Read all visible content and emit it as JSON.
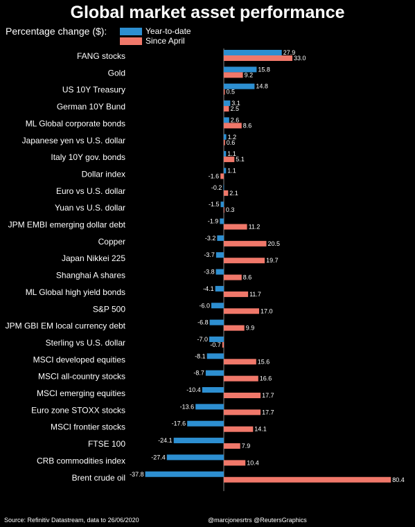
{
  "header": {
    "title": "Global market asset performance",
    "subtitle": "Percentage change ($):"
  },
  "legend": [
    {
      "label": "Year-to-date",
      "color": "#2d8fd1"
    },
    {
      "label": "Since April",
      "color": "#f0786a"
    }
  ],
  "footer": {
    "source": "Source: Refinitiv Datastream, data to 26/06/2020",
    "credit": "@marcjonesrtrs @ReutersGraphics"
  },
  "chart_data": {
    "type": "bar",
    "orientation": "horizontal",
    "title": "Global market asset performance",
    "categories": [
      "FANG stocks",
      "Gold",
      "US 10Y Treasury",
      "German 10Y Bund",
      "ML Global corporate bonds",
      "Japanese yen vs U.S. dollar",
      "Italy 10Y gov. bonds",
      "Dollar index",
      "Euro vs U.S. dollar",
      "Yuan vs U.S. dollar",
      "JPM EMBI emerging dollar debt",
      "Copper",
      "Japan Nikkei 225",
      "Shanghai A shares",
      "ML Global high yield bonds",
      "S&P 500",
      "JPM GBI EM local currency debt",
      "Sterling vs U.S. dollar",
      "MSCI developed equities",
      "MSCI all-country stocks",
      "MSCI emerging equities",
      "Euro zone STOXX stocks",
      "MSCI frontier stocks",
      "FTSE 100",
      "CRB commodities index",
      "Brent crude oil"
    ],
    "series": [
      {
        "name": "Year-to-date",
        "color": "#2d8fd1",
        "values": [
          27.9,
          15.8,
          14.8,
          3.1,
          2.6,
          1.2,
          1.1,
          1.1,
          -0.2,
          -1.5,
          -1.9,
          -3.2,
          -3.7,
          -3.8,
          -4.1,
          -6.0,
          -6.8,
          -7.0,
          -8.1,
          -8.7,
          -10.4,
          -13.6,
          -17.6,
          -24.1,
          -27.4,
          -37.8
        ],
        "labels": [
          "27.9",
          "15.8",
          "14.8",
          "3.1",
          "2.6",
          "1.2",
          "1.1",
          "1.1",
          "-0.2",
          "-1.5",
          "-1.9",
          "-3.2",
          "-3.7",
          "-3.8",
          "-4.1",
          "-6.0",
          "-6.8",
          "-7.0",
          "-8.1",
          "-8.7",
          "-10.4",
          "-13.6",
          "-17.6",
          "-24.1",
          "-27.4",
          "-37.8"
        ]
      },
      {
        "name": "Since April",
        "color": "#f0786a",
        "values": [
          33.0,
          9.2,
          0.5,
          2.5,
          8.6,
          0.6,
          5.1,
          -1.6,
          2.1,
          0.3,
          11.2,
          20.5,
          19.7,
          8.6,
          11.7,
          17.0,
          9.9,
          -0.7,
          15.6,
          16.6,
          17.7,
          17.7,
          14.1,
          7.9,
          10.4,
          80.4
        ],
        "labels": [
          "33.0",
          "9.2",
          "0.5",
          "2.5",
          "8.6",
          "0.6",
          "5.1",
          "-1.6",
          "2.1",
          "0.3",
          "11.2",
          "20.5",
          "19.7",
          "8.6",
          "11.7",
          "17.0",
          "9.9",
          "-0.7",
          "15.6",
          "16.6",
          "17.7",
          "17.7",
          "14.1",
          "7.9",
          "10.4",
          "80.4"
        ]
      }
    ],
    "xlim": [
      -37.8,
      80.4
    ],
    "grid": false,
    "legend_position": "top-left"
  }
}
